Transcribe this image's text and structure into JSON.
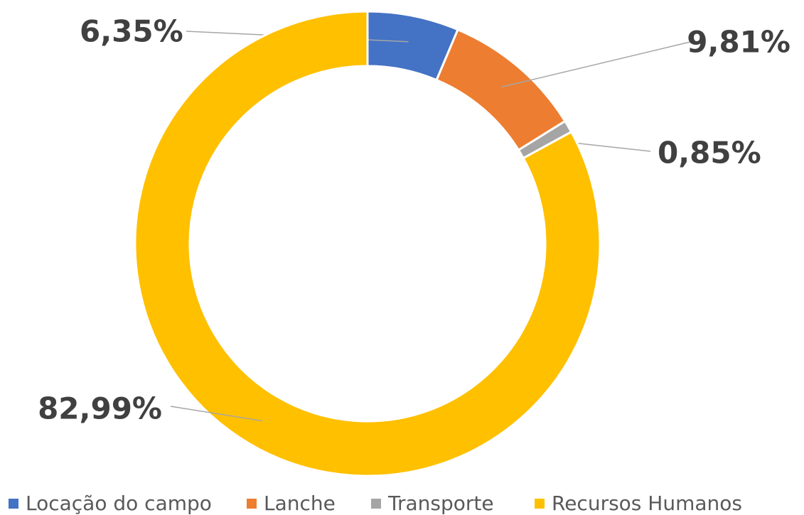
{
  "chart_data": {
    "type": "donut",
    "categories": [
      "Locação do campo",
      "Lanche",
      "Transporte",
      "Recursos Humanos"
    ],
    "values": [
      6.35,
      9.81,
      0.85,
      82.99
    ],
    "value_labels": [
      "6,35%",
      "9,81%",
      "0,85%",
      "82,99%"
    ],
    "colors": [
      "#4472c4",
      "#ed7d31",
      "#a5a5a5",
      "#ffc000"
    ],
    "legend": "bottom"
  }
}
